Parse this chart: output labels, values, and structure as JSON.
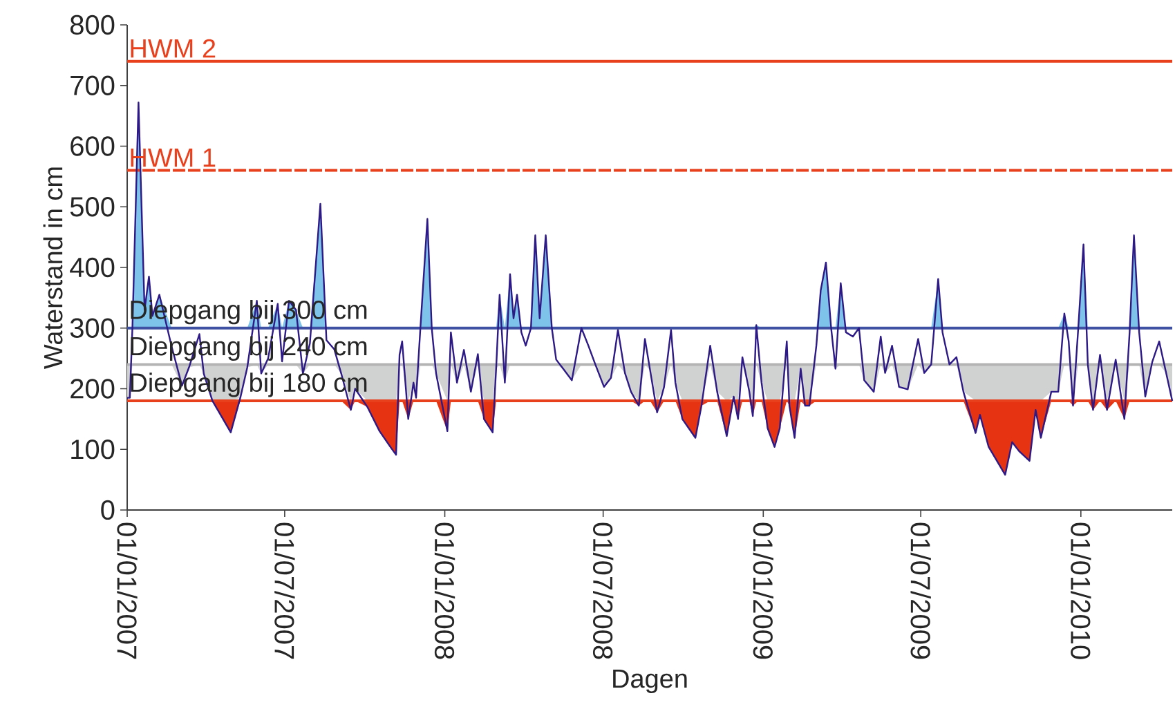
{
  "chart_data": {
    "type": "line",
    "xlabel": "Dagen",
    "ylabel": "Waterstand in cm",
    "ylim": [
      0,
      800
    ],
    "yticks": [
      0,
      100,
      200,
      300,
      400,
      500,
      600,
      700,
      800
    ],
    "xlim": [
      "2007-01-01",
      "2010-04-16"
    ],
    "xticks": [
      {
        "value": "2007-01-01",
        "label": "01/01/2007"
      },
      {
        "value": "2007-07-01",
        "label": "01/07/2007"
      },
      {
        "value": "2008-01-01",
        "label": "01/01/2008"
      },
      {
        "value": "2008-07-01",
        "label": "01/07/2008"
      },
      {
        "value": "2009-01-01",
        "label": "01/01/2009"
      },
      {
        "value": "2009-07-01",
        "label": "01/07/2009"
      },
      {
        "value": "2010-01-01",
        "label": "01/01/2010"
      }
    ],
    "grid": false,
    "ref_lines": [
      {
        "axis": "y",
        "value": 740,
        "label": "HWM 2",
        "color": "#e8401c",
        "line_style": "solid"
      },
      {
        "axis": "y",
        "value": 560,
        "label": "HWM 1",
        "color": "#e8401c",
        "line_style": "dashed"
      },
      {
        "axis": "y",
        "value": 300,
        "label": "Diepgang bij 300 cm",
        "color": "#3f51a3",
        "line_style": "solid"
      },
      {
        "axis": "y",
        "value": 240,
        "label": "Diepgang bij 240 cm",
        "color": "#b4b4b4",
        "line_style": "solid"
      },
      {
        "axis": "y",
        "value": 180,
        "label": "Diepgang bij 180 cm",
        "color": "#e8401c",
        "line_style": "solid"
      }
    ],
    "x": [
      "2007-01-01",
      "2007-01-04",
      "2007-01-07",
      "2007-01-14",
      "2007-01-21",
      "2007-01-26",
      "2007-01-30",
      "2007-02-07",
      "2007-02-21",
      "2007-03-05",
      "2007-03-13",
      "2007-03-25",
      "2007-03-30",
      "2007-04-09",
      "2007-04-30",
      "2007-05-11",
      "2007-05-19",
      "2007-05-30",
      "2007-06-04",
      "2007-06-12",
      "2007-06-23",
      "2007-06-28",
      "2007-07-06",
      "2007-07-14",
      "2007-07-22",
      "2007-07-30",
      "2007-08-11",
      "2007-08-18",
      "2007-08-27",
      "2007-09-04",
      "2007-09-15",
      "2007-09-20",
      "2007-10-04",
      "2007-10-18",
      "2007-10-30",
      "2007-11-06",
      "2007-11-10",
      "2007-11-13",
      "2007-11-20",
      "2007-11-26",
      "2007-11-29",
      "2007-12-04",
      "2007-12-12",
      "2007-12-17",
      "2007-12-22",
      "2008-01-04",
      "2008-01-08",
      "2008-01-15",
      "2008-01-23",
      "2008-01-31",
      "2008-02-08",
      "2008-02-15",
      "2008-02-25",
      "2008-02-29",
      "2008-03-04",
      "2008-03-10",
      "2008-03-16",
      "2008-03-20",
      "2008-03-24",
      "2008-03-29",
      "2008-04-03",
      "2008-04-09",
      "2008-04-14",
      "2008-04-19",
      "2008-04-26",
      "2008-05-03",
      "2008-05-08",
      "2008-05-16",
      "2008-05-26",
      "2008-06-06",
      "2008-06-14",
      "2008-06-22",
      "2008-07-02",
      "2008-07-10",
      "2008-07-18",
      "2008-07-26",
      "2008-08-02",
      "2008-08-11",
      "2008-08-18",
      "2008-08-24",
      "2008-09-01",
      "2008-09-09",
      "2008-09-17",
      "2008-09-22",
      "2008-09-30",
      "2008-10-15",
      "2008-10-22",
      "2008-11-01",
      "2008-11-09",
      "2008-11-20",
      "2008-11-28",
      "2008-12-03",
      "2008-12-08",
      "2008-12-16",
      "2008-12-20",
      "2008-12-24",
      "2008-12-30",
      "2009-01-06",
      "2009-01-14",
      "2009-01-20",
      "2009-01-28",
      "2009-01-31",
      "2009-02-06",
      "2009-02-13",
      "2009-02-18",
      "2009-02-23",
      "2009-03-03",
      "2009-03-08",
      "2009-03-14",
      "2009-03-20",
      "2009-03-25",
      "2009-03-31",
      "2009-04-06",
      "2009-04-14",
      "2009-04-21",
      "2009-04-27",
      "2009-05-08",
      "2009-05-16",
      "2009-05-21",
      "2009-05-29",
      "2009-06-06",
      "2009-06-16",
      "2009-06-28",
      "2009-07-05",
      "2009-07-13",
      "2009-07-21",
      "2009-07-26",
      "2009-08-03",
      "2009-08-11",
      "2009-08-19",
      "2009-09-02",
      "2009-09-07",
      "2009-09-17",
      "2009-10-06",
      "2009-10-14",
      "2009-10-22",
      "2009-11-03",
      "2009-11-10",
      "2009-11-16",
      "2009-11-28",
      "2009-12-06",
      "2009-12-13",
      "2009-12-18",
      "2009-12-23",
      "2009-12-29",
      "2010-01-04",
      "2010-01-09",
      "2010-01-15",
      "2010-01-23",
      "2010-01-31",
      "2010-02-10",
      "2010-02-20",
      "2010-02-26",
      "2010-03-03",
      "2010-03-09",
      "2010-03-16",
      "2010-03-24",
      "2010-04-01",
      "2010-04-09",
      "2010-04-16"
    ],
    "series": [
      {
        "color": "#2e1a87",
        "values": [
          185,
          185,
          300,
          672,
          330,
          385,
          320,
          355,
          270,
          205,
          235,
          290,
          225,
          180,
          128,
          185,
          235,
          345,
          225,
          250,
          340,
          245,
          345,
          330,
          225,
          275,
          505,
          280,
          265,
          225,
          165,
          200,
          170,
          130,
          105,
          91,
          256,
          278,
          150,
          210,
          185,
          301,
          480,
          300,
          225,
          130,
          293,
          210,
          264,
          195,
          257,
          150,
          128,
          233,
          355,
          210,
          389,
          316,
          355,
          293,
          271,
          300,
          453,
          316,
          453,
          300,
          248,
          233,
          214,
          300,
          271,
          240,
          203,
          218,
          297,
          226,
          195,
          172,
          282,
          230,
          161,
          203,
          297,
          210,
          150,
          119,
          172,
          271,
          195,
          122,
          187,
          150,
          252,
          195,
          155,
          305,
          210,
          135,
          104,
          135,
          278,
          172,
          119,
          233,
          172,
          172,
          271,
          362,
          408,
          300,
          233,
          374,
          293,
          286,
          300,
          214,
          195,
          286,
          226,
          271,
          203,
          199,
          282,
          226,
          240,
          381,
          293,
          240,
          252,
          195,
          127,
          157,
          104,
          58,
          112,
          97,
          81,
          165,
          119,
          195,
          195,
          324,
          278,
          172,
          300,
          438,
          240,
          165,
          256,
          165,
          248,
          150,
          293,
          453,
          293,
          187,
          244,
          278,
          226,
          180
        ]
      },
      {
        "type": "area",
        "color": "#7dc3ea",
        "values": [
          null,
          null,
          null,
          null,
          null,
          null,
          null,
          null,
          null,
          null,
          null,
          null,
          null,
          null,
          null,
          null,
          null,
          null,
          null,
          null,
          null,
          null,
          null,
          null,
          null,
          null,
          null,
          null,
          null,
          null,
          null,
          null,
          null,
          null,
          null,
          null,
          null,
          null,
          null,
          null,
          null,
          null,
          null,
          null,
          null,
          null,
          null,
          null,
          null,
          null,
          null,
          null,
          null,
          null,
          null,
          null,
          null,
          null,
          null,
          null,
          null,
          null,
          null,
          null,
          null,
          null,
          null,
          null,
          null,
          null,
          null,
          null,
          null,
          null,
          null,
          null,
          null,
          null,
          null,
          null,
          null,
          null,
          null,
          null,
          null,
          null,
          null,
          null,
          null,
          null,
          null,
          null,
          null,
          null,
          null,
          null,
          null,
          null,
          null,
          null,
          null,
          null,
          null,
          null,
          null,
          null,
          null,
          null,
          null,
          null,
          null,
          null,
          null,
          null,
          null,
          null,
          null,
          null,
          null,
          null,
          null,
          null,
          null,
          null,
          null,
          null,
          null,
          null,
          null,
          null,
          null,
          null,
          null,
          null,
          null,
          null,
          null,
          null,
          null,
          null,
          null,
          null,
          null,
          null,
          null,
          null,
          null,
          null,
          null,
          null,
          null,
          null,
          null,
          null,
          null,
          null,
          null,
          null,
          null,
          null
        ],
        "lower": [
          300,
          300,
          300,
          300,
          300,
          300,
          300,
          300,
          300,
          300,
          300,
          300,
          300,
          300,
          300,
          300,
          300,
          300,
          300,
          300,
          300,
          300,
          300,
          300,
          300,
          300,
          300,
          300,
          300,
          300,
          300,
          300,
          300,
          300,
          300,
          300,
          300,
          300,
          300,
          300,
          300,
          300,
          300,
          300,
          300,
          300,
          300,
          300,
          300,
          300,
          300,
          300,
          300,
          300,
          300,
          300,
          300,
          300,
          300,
          300,
          300,
          300,
          300,
          300,
          300,
          300,
          300,
          300,
          300,
          300,
          300,
          300,
          300,
          300,
          300,
          300,
          300,
          300,
          300,
          300,
          300,
          300,
          300,
          300,
          300,
          300,
          300,
          300,
          300,
          300,
          300,
          300,
          300,
          300,
          300,
          300,
          300,
          300,
          300,
          300,
          300,
          300,
          300,
          300,
          300,
          300,
          300,
          300,
          300,
          300,
          300,
          300,
          300,
          300,
          300,
          300,
          300,
          300,
          300,
          300,
          300,
          300,
          300,
          300,
          300,
          300,
          300,
          300,
          300,
          300,
          300,
          300,
          300,
          300,
          300,
          300,
          300,
          300,
          300,
          300,
          300,
          300,
          300,
          300,
          300,
          300,
          300,
          300,
          300,
          300,
          300,
          300,
          300,
          300,
          300,
          300,
          300,
          300,
          300,
          300
        ],
        "upper": [
          300,
          300,
          300,
          672,
          330,
          385,
          320,
          355,
          300,
          300,
          300,
          300,
          300,
          300,
          300,
          300,
          300,
          345,
          300,
          300,
          340,
          300,
          345,
          330,
          300,
          300,
          505,
          300,
          300,
          300,
          300,
          300,
          300,
          300,
          300,
          300,
          300,
          300,
          300,
          300,
          300,
          301,
          480,
          300,
          300,
          300,
          300,
          300,
          300,
          300,
          300,
          300,
          300,
          300,
          355,
          300,
          389,
          316,
          355,
          300,
          300,
          300,
          453,
          316,
          453,
          300,
          300,
          300,
          300,
          300,
          300,
          300,
          300,
          300,
          300,
          300,
          300,
          300,
          300,
          300,
          300,
          300,
          300,
          300,
          300,
          300,
          300,
          300,
          300,
          300,
          300,
          300,
          300,
          300,
          300,
          305,
          300,
          300,
          300,
          300,
          300,
          300,
          300,
          300,
          300,
          300,
          300,
          362,
          408,
          300,
          300,
          374,
          300,
          300,
          300,
          300,
          300,
          300,
          300,
          300,
          300,
          300,
          300,
          300,
          300,
          381,
          300,
          300,
          300,
          300,
          300,
          300,
          300,
          300,
          300,
          300,
          300,
          300,
          300,
          300,
          300,
          324,
          300,
          300,
          300,
          438,
          300,
          300,
          300,
          300,
          300,
          300,
          300,
          453,
          300,
          300,
          300,
          300,
          300,
          300
        ]
      },
      {
        "type": "area",
        "color": "#d0d1d1",
        "values": [
          null,
          null,
          null,
          null,
          null,
          null,
          null,
          null,
          null,
          null,
          null,
          null,
          null,
          null,
          null,
          null,
          null,
          null,
          null,
          null,
          null,
          null,
          null,
          null,
          null,
          null,
          null,
          null,
          null,
          null,
          null,
          null,
          null,
          null,
          null,
          null,
          null,
          null,
          null,
          null,
          null,
          null,
          null,
          null,
          null,
          null,
          null,
          null,
          null,
          null,
          null,
          null,
          null,
          null,
          null,
          null,
          null,
          null,
          null,
          null,
          null,
          null,
          null,
          null,
          null,
          null,
          null,
          null,
          null,
          null,
          null,
          null,
          null,
          null,
          null,
          null,
          null,
          null,
          null,
          null,
          null,
          null,
          null,
          null,
          null,
          null,
          null,
          null,
          null,
          null,
          null,
          null,
          null,
          null,
          null,
          null,
          null,
          null,
          null,
          null,
          null,
          null,
          null,
          null,
          null,
          null,
          null,
          null,
          null,
          null,
          null,
          null,
          null,
          null,
          null,
          null,
          null,
          null,
          null,
          null,
          null,
          null,
          null,
          null,
          null,
          null,
          null,
          null,
          null,
          null,
          null,
          null,
          null,
          null,
          null,
          null,
          null,
          null,
          null,
          null,
          null,
          null,
          null,
          null,
          null,
          null,
          null,
          null,
          null,
          null,
          null,
          null,
          null,
          null,
          null,
          null,
          null,
          null,
          null,
          null
        ],
        "lower": [
          185,
          185,
          240,
          240,
          240,
          240,
          240,
          240,
          240,
          205,
          235,
          240,
          225,
          180,
          180,
          185,
          235,
          240,
          225,
          240,
          240,
          240,
          240,
          240,
          225,
          240,
          240,
          240,
          240,
          225,
          180,
          200,
          180,
          180,
          180,
          180,
          240,
          240,
          180,
          210,
          185,
          240,
          240,
          240,
          225,
          180,
          240,
          210,
          240,
          195,
          240,
          180,
          180,
          233,
          240,
          210,
          240,
          240,
          240,
          240,
          240,
          240,
          240,
          240,
          240,
          240,
          240,
          233,
          214,
          240,
          240,
          240,
          203,
          218,
          240,
          226,
          195,
          180,
          240,
          230,
          180,
          203,
          240,
          210,
          180,
          180,
          180,
          240,
          195,
          180,
          187,
          180,
          240,
          195,
          180,
          240,
          210,
          180,
          180,
          180,
          240,
          180,
          180,
          233,
          180,
          180,
          240,
          240,
          240,
          240,
          233,
          240,
          240,
          240,
          240,
          214,
          195,
          240,
          226,
          240,
          203,
          199,
          240,
          226,
          240,
          240,
          240,
          240,
          240,
          195,
          180,
          180,
          180,
          180,
          180,
          180,
          180,
          180,
          180,
          195,
          195,
          240,
          240,
          180,
          240,
          240,
          240,
          180,
          240,
          180,
          240,
          180,
          240,
          240,
          240,
          187,
          240,
          240,
          226,
          180
        ],
        "upper": [
          240,
          240,
          240,
          240,
          240,
          240,
          240,
          240,
          240,
          240,
          240,
          240,
          240,
          240,
          240,
          240,
          240,
          240,
          240,
          240,
          240,
          240,
          240,
          240,
          240,
          240,
          240,
          240,
          240,
          240,
          240,
          240,
          240,
          240,
          240,
          240,
          240,
          240,
          240,
          240,
          240,
          240,
          240,
          240,
          240,
          240,
          240,
          240,
          240,
          240,
          240,
          240,
          240,
          240,
          240,
          240,
          240,
          240,
          240,
          240,
          240,
          240,
          240,
          240,
          240,
          240,
          240,
          240,
          240,
          240,
          240,
          240,
          240,
          240,
          240,
          240,
          240,
          240,
          240,
          240,
          240,
          240,
          240,
          240,
          240,
          240,
          240,
          240,
          240,
          240,
          240,
          240,
          240,
          240,
          240,
          240,
          240,
          240,
          240,
          240,
          240,
          240,
          240,
          240,
          240,
          240,
          240,
          240,
          240,
          240,
          240,
          240,
          240,
          240,
          240,
          240,
          240,
          240,
          240,
          240,
          240,
          240,
          240,
          240,
          240,
          240,
          240,
          240,
          240,
          240,
          240,
          240,
          240,
          240,
          240,
          240,
          240,
          240,
          240,
          240,
          240,
          240,
          240,
          240,
          240,
          240,
          240,
          240,
          240,
          240,
          240,
          240,
          240,
          240,
          240,
          240,
          240,
          240,
          240,
          240
        ]
      },
      {
        "type": "area",
        "color": "#e63312",
        "values": [
          null,
          null,
          null,
          null,
          null,
          null,
          null,
          null,
          null,
          null,
          null,
          null,
          null,
          null,
          null,
          null,
          null,
          null,
          null,
          null,
          null,
          null,
          null,
          null,
          null,
          null,
          null,
          null,
          null,
          null,
          null,
          null,
          null,
          null,
          null,
          null,
          null,
          null,
          null,
          null,
          null,
          null,
          null,
          null,
          null,
          null,
          null,
          null,
          null,
          null,
          null,
          null,
          null,
          null,
          null,
          null,
          null,
          null,
          null,
          null,
          null,
          null,
          null,
          null,
          null,
          null,
          null,
          null,
          null,
          null,
          null,
          null,
          null,
          null,
          null,
          null,
          null,
          null,
          null,
          null,
          null,
          null,
          null,
          null,
          null,
          null,
          null,
          null,
          null,
          null,
          null,
          null,
          null,
          null,
          null,
          null,
          null,
          null,
          null,
          null,
          null,
          null,
          null,
          null,
          null,
          null,
          null,
          null,
          null,
          null,
          null,
          null,
          null,
          null,
          null,
          null,
          null,
          null,
          null,
          null,
          null,
          null,
          null,
          null,
          null,
          null,
          null,
          null,
          null,
          null,
          null,
          null,
          null,
          null,
          null,
          null,
          null,
          null,
          null,
          null,
          null,
          null,
          null,
          null,
          null,
          null,
          null,
          null,
          null,
          null,
          null,
          null,
          null,
          null,
          null,
          null,
          null,
          null,
          null,
          null
        ],
        "lower": [
          180,
          180,
          180,
          180,
          180,
          180,
          180,
          180,
          180,
          180,
          180,
          180,
          180,
          180,
          128,
          180,
          180,
          180,
          180,
          180,
          180,
          180,
          180,
          180,
          180,
          180,
          180,
          180,
          180,
          180,
          165,
          180,
          170,
          130,
          105,
          91,
          180,
          180,
          150,
          180,
          180,
          180,
          180,
          180,
          180,
          130,
          180,
          180,
          180,
          180,
          180,
          150,
          128,
          180,
          180,
          180,
          180,
          180,
          180,
          180,
          180,
          180,
          180,
          180,
          180,
          180,
          180,
          180,
          180,
          180,
          180,
          180,
          180,
          180,
          180,
          180,
          180,
          172,
          180,
          180,
          161,
          180,
          180,
          180,
          150,
          119,
          172,
          180,
          180,
          122,
          180,
          150,
          180,
          180,
          155,
          180,
          180,
          135,
          104,
          135,
          180,
          172,
          119,
          180,
          172,
          172,
          180,
          180,
          180,
          180,
          180,
          180,
          180,
          180,
          180,
          180,
          180,
          180,
          180,
          180,
          180,
          180,
          180,
          180,
          180,
          180,
          180,
          180,
          180,
          180,
          127,
          157,
          104,
          58,
          112,
          97,
          81,
          165,
          119,
          180,
          180,
          180,
          180,
          172,
          180,
          180,
          180,
          165,
          180,
          165,
          180,
          150,
          180,
          180,
          180,
          180,
          180,
          180,
          180,
          180
        ],
        "upper": [
          180,
          180,
          180,
          180,
          180,
          180,
          180,
          180,
          180,
          180,
          180,
          180,
          180,
          180,
          180,
          180,
          180,
          180,
          180,
          180,
          180,
          180,
          180,
          180,
          180,
          180,
          180,
          180,
          180,
          180,
          180,
          180,
          180,
          180,
          180,
          180,
          180,
          180,
          180,
          180,
          180,
          180,
          180,
          180,
          180,
          180,
          180,
          180,
          180,
          180,
          180,
          180,
          180,
          180,
          180,
          180,
          180,
          180,
          180,
          180,
          180,
          180,
          180,
          180,
          180,
          180,
          180,
          180,
          180,
          180,
          180,
          180,
          180,
          180,
          180,
          180,
          180,
          180,
          180,
          180,
          180,
          180,
          180,
          180,
          180,
          180,
          180,
          180,
          180,
          180,
          180,
          180,
          180,
          180,
          180,
          180,
          180,
          180,
          180,
          180,
          180,
          180,
          180,
          180,
          180,
          180,
          180,
          180,
          180,
          180,
          180,
          180,
          180,
          180,
          180,
          180,
          180,
          180,
          180,
          180,
          180,
          180,
          180,
          180,
          180,
          180,
          180,
          180,
          180,
          180,
          180,
          180,
          180,
          180,
          180,
          180,
          180,
          180,
          180,
          180,
          180,
          180,
          180,
          180,
          180,
          180,
          180,
          180,
          180,
          180,
          180,
          180,
          180,
          180,
          180,
          180,
          180,
          180,
          180,
          180
        ]
      }
    ]
  }
}
